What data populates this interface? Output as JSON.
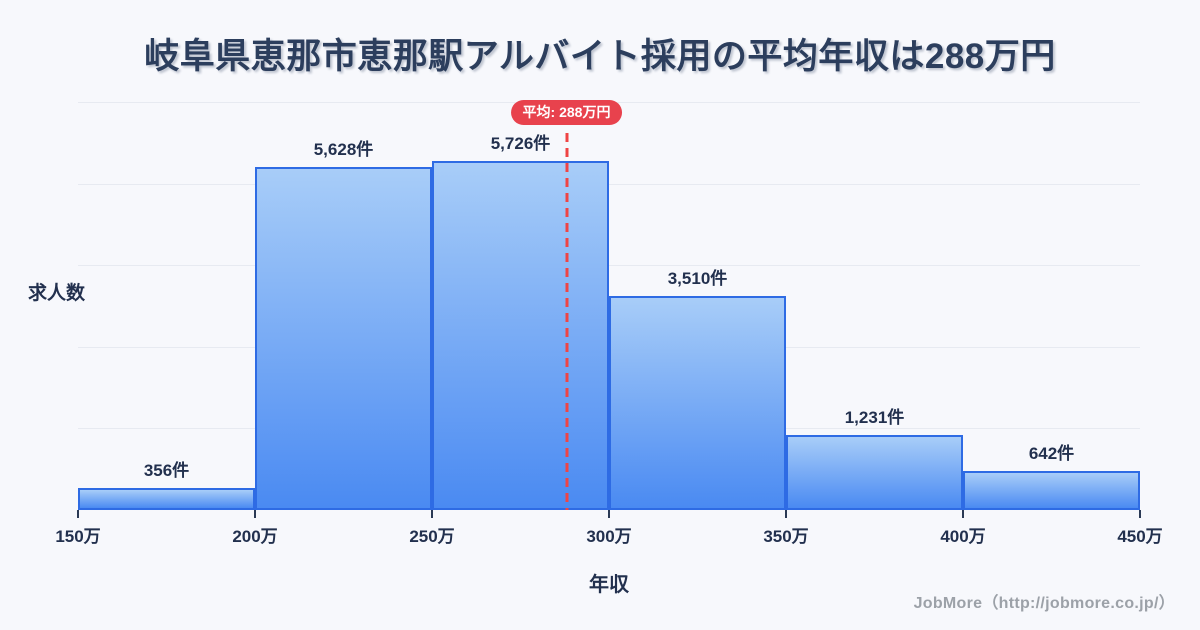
{
  "title": {
    "text": "岐阜県恵那市恵那駅アルバイト採用の平均年収は288万円"
  },
  "chart_data": {
    "type": "bar",
    "subtype": "histogram",
    "title": "岐阜県恵那市恵那駅アルバイト採用の平均年収は288万円",
    "xlabel": "年収",
    "ylabel": "求人数",
    "bin_edge_labels": [
      "150万",
      "200万",
      "250万",
      "300万",
      "350万",
      "400万",
      "450万"
    ],
    "bin_edge_values": [
      150,
      200,
      250,
      300,
      350,
      400,
      450
    ],
    "values": [
      356,
      5628,
      5726,
      3510,
      1231,
      642
    ],
    "bar_labels": [
      "356件",
      "5,628件",
      "5,726件",
      "3,510件",
      "1,231件",
      "642件"
    ],
    "xlim": [
      150,
      450
    ],
    "ylim": [
      0,
      6700
    ],
    "gridlines": {
      "orientation": "horizontal",
      "count": 5
    },
    "average": {
      "value": 288,
      "label": "平均: 288万円"
    }
  },
  "footer": {
    "credit": "JobMore（http://jobmore.co.jp/）"
  },
  "colors": {
    "background": "#f7f8fc",
    "title": "#2c3e5d",
    "label": "#22304e",
    "grid": "#e7eaf1",
    "bar-border": "#2e6be4",
    "bar-top": "#a8cdf8",
    "bar-bottom": "#4a8af2",
    "avg-line": "#ef4444",
    "avg-badge": "#e8424d",
    "footer": "#9ca1a8"
  }
}
